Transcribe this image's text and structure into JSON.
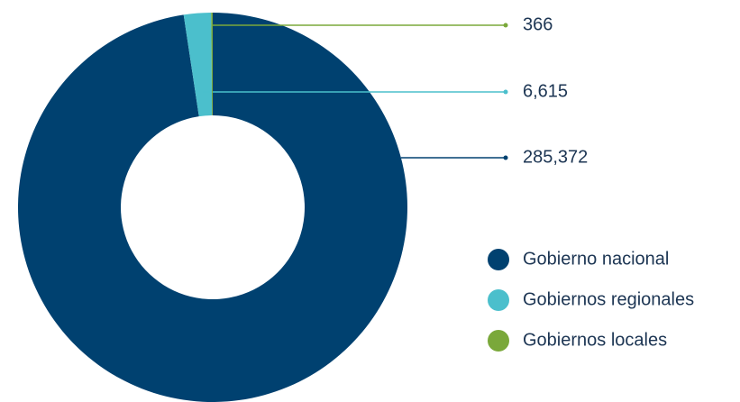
{
  "chart_data": {
    "type": "donut",
    "categories": [
      "Gobierno nacional",
      "Gobiernos regionales",
      "Gobiernos locales"
    ],
    "values": [
      285372,
      6615,
      366
    ],
    "value_labels": [
      "285,372",
      "6,615",
      "366"
    ],
    "colors": [
      "#004170",
      "#4bbfcc",
      "#7aa83a"
    ]
  }
}
